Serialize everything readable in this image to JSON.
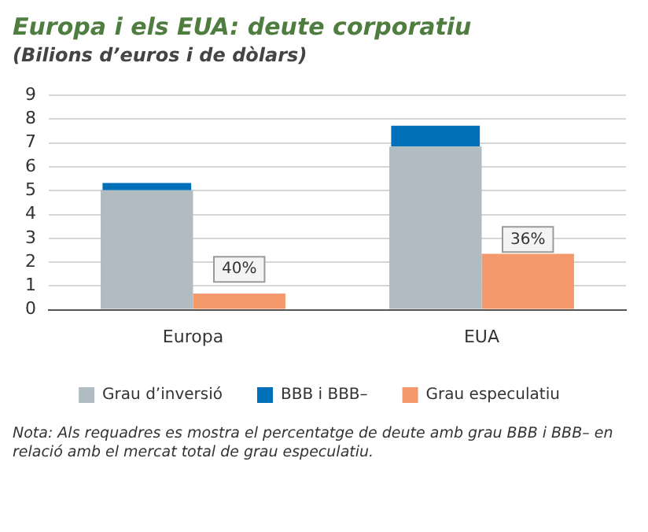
{
  "chart_data": {
    "type": "bar",
    "title": "Europa i els EUA: deute corporatiu",
    "subtitle": "(Bilions d’euros i de dòlars)",
    "categories": [
      "Europa",
      "EUA"
    ],
    "series": [
      {
        "name": "Grau d’inversió",
        "color": "#b0bcc1",
        "values": [
          5.02,
          6.85
        ]
      },
      {
        "name": "BBB i BBB–",
        "color": "#0071b9",
        "values": [
          0.3,
          0.88
        ],
        "base": [
          5.02,
          6.85
        ]
      },
      {
        "name": "Grau especulatiu",
        "color": "#f4996b",
        "values": [
          0.68,
          2.35
        ]
      }
    ],
    "ylim": [
      0,
      9
    ],
    "yticks": [
      0,
      1,
      2,
      3,
      4,
      5,
      6,
      7,
      8,
      9
    ],
    "grid": "y",
    "legend": "bottom",
    "annotations": [
      {
        "text": "40%",
        "x": "Europa",
        "y": 1.7
      },
      {
        "text": "36%",
        "x": "EUA",
        "y": 2.95
      },
      "Nota: Als requadres es mostra el percentatge de deute amb grau BBB i BBB– en relació amb el mercat total de grau especulatiu."
    ]
  }
}
